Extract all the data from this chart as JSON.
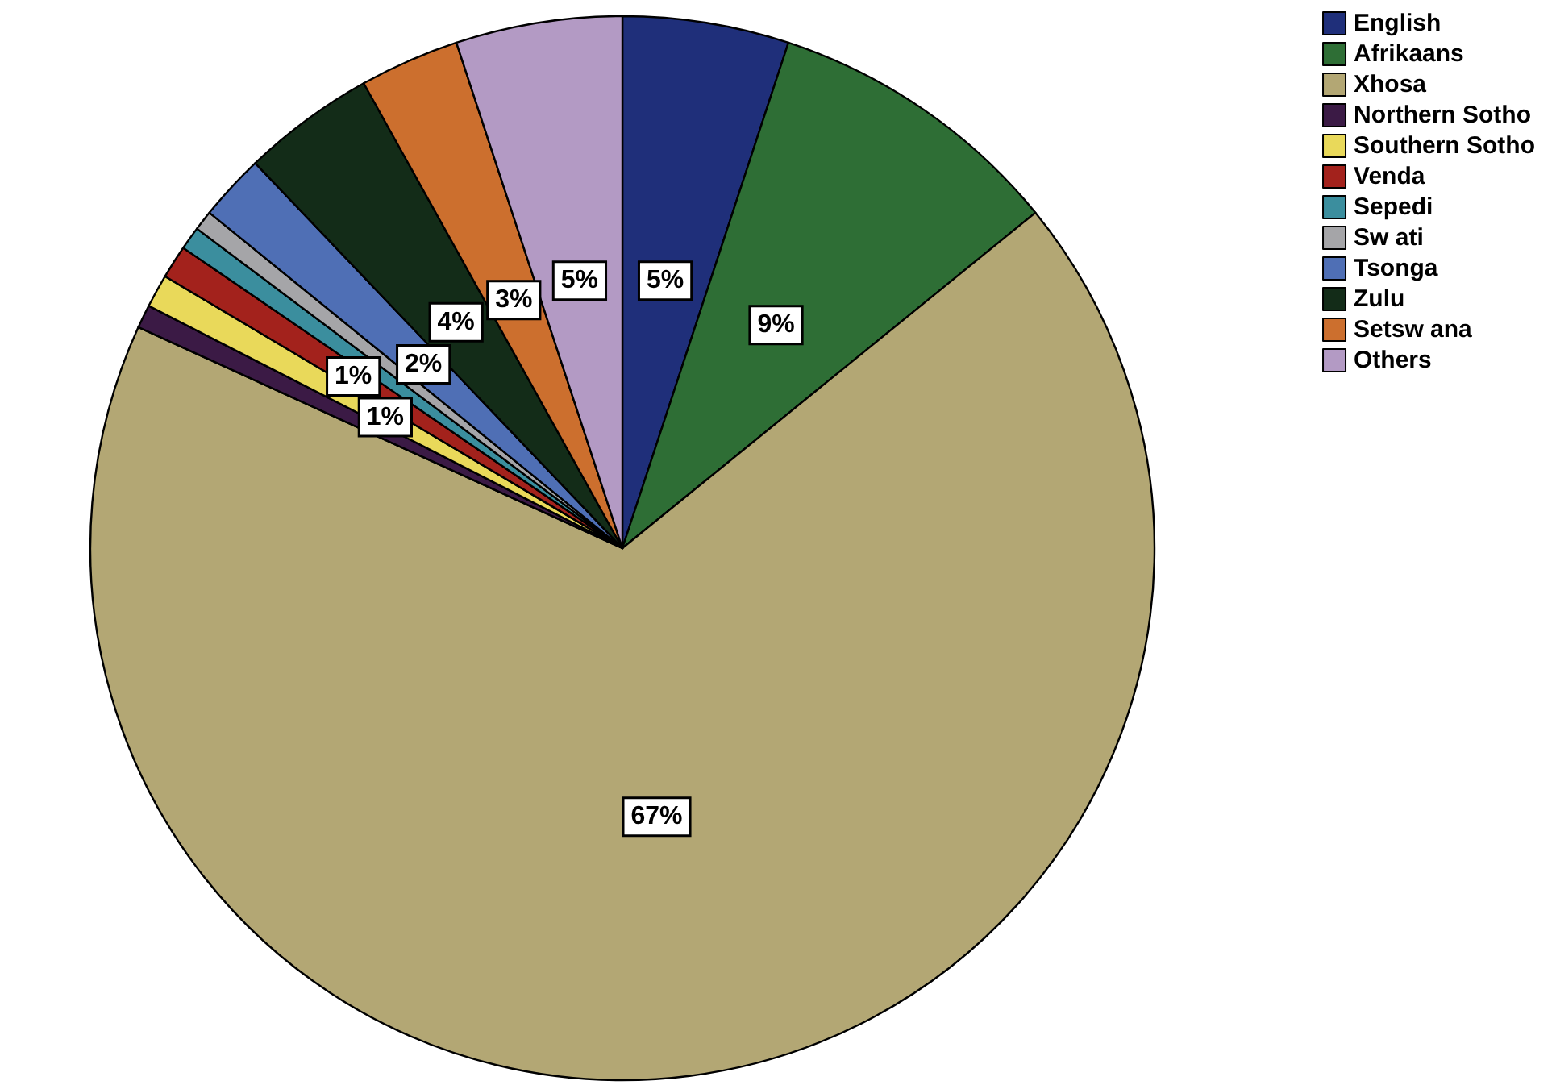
{
  "chart_data": {
    "type": "pie",
    "categories": [
      "English",
      "Afrikaans",
      "Xhosa",
      "Northern Sotho",
      "Southern Sotho",
      "Venda",
      "Sepedi",
      "Sw ati",
      "Tsonga",
      "Zulu",
      "Setsw ana",
      "Others"
    ],
    "values": [
      5,
      9,
      67,
      0.7,
      1,
      1,
      0.7,
      0.6,
      2,
      4,
      3,
      5
    ],
    "colors": [
      "#1f2f7a",
      "#2e6e35",
      "#b3a774",
      "#3b1a45",
      "#e9d95a",
      "#a3221c",
      "#3b8e9e",
      "#a5a5a8",
      "#4f6fb5",
      "#132c18",
      "#cc6f2e",
      "#b39ac4"
    ],
    "value_labels": [
      "5%",
      "9%",
      "67%",
      null,
      "1%",
      "1%",
      null,
      null,
      "2%",
      "4%",
      "3%",
      "5%"
    ],
    "legend": "top right"
  }
}
